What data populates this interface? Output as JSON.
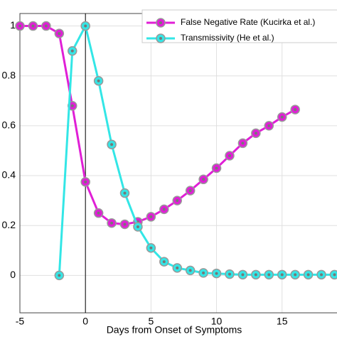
{
  "chart_data": {
    "type": "line",
    "xlabel": "Days from Onset of Symptoms",
    "xlim": [
      -5,
      19.3
    ],
    "xticks": [
      -5,
      0,
      5,
      10,
      15
    ],
    "ylim": [
      -0.15,
      1.05
    ],
    "yticks": [
      0,
      0.2,
      0.4,
      0.6,
      0.8,
      1
    ],
    "grid": true,
    "legend": "top-right",
    "vline": 0,
    "series": [
      {
        "name": "False Negative Rate (Kucirka et al.)",
        "color": "#e01fd6",
        "x": [
          -5,
          -4,
          -3,
          -2,
          -1,
          0,
          1,
          2,
          3,
          4,
          5,
          6,
          7,
          8,
          9,
          10,
          11,
          12,
          13,
          14,
          15,
          16
        ],
        "values": [
          1,
          1,
          1,
          0.97,
          0.68,
          0.375,
          0.25,
          0.21,
          0.205,
          0.215,
          0.235,
          0.265,
          0.3,
          0.34,
          0.385,
          0.43,
          0.48,
          0.53,
          0.57,
          0.6,
          0.635,
          0.665
        ]
      },
      {
        "name": "Transmissivity (He et al.)",
        "color": "#33e6e6",
        "x": [
          -2,
          -1,
          0,
          1,
          2,
          3,
          4,
          5,
          6,
          7,
          8,
          9,
          10,
          11,
          12,
          13,
          14,
          15,
          16,
          17,
          18,
          19
        ],
        "values": [
          0,
          0.9,
          1,
          0.78,
          0.525,
          0.33,
          0.195,
          0.11,
          0.055,
          0.03,
          0.02,
          0.01,
          0.008,
          0.005,
          0.003,
          0.003,
          0.003,
          0.003,
          0.003,
          0.003,
          0.003,
          0.003
        ]
      }
    ]
  }
}
